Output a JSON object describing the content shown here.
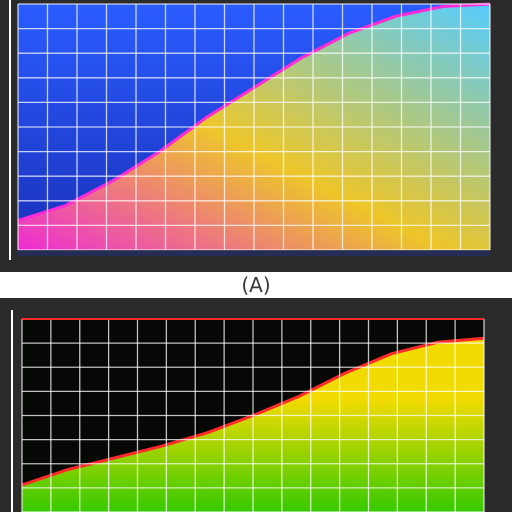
{
  "colors": {
    "frame_dark": "#2b2b2b",
    "panel_a_background": "#1f3fd8",
    "panel_a_band_start": "#ff2bd6",
    "panel_a_band_mid": "#ffd21c",
    "panel_a_band_end": "#58d6ff",
    "panel_b_background": "#050805",
    "panel_b_edge": "#ff2b2b",
    "panel_b_band_mid": "#ffe600",
    "panel_b_band_low": "#39d400",
    "grid": "#ffffff"
  },
  "chart_data": [
    {
      "type": "area",
      "panel_label": "(A)",
      "grid": true,
      "x": [
        0,
        0.1,
        0.2,
        0.3,
        0.4,
        0.5,
        0.6,
        0.7,
        0.8,
        0.9,
        1.0
      ],
      "series": [
        {
          "values": [
            0.12,
            0.18,
            0.28,
            0.4,
            0.54,
            0.66,
            0.78,
            0.88,
            0.95,
            0.99,
            1.0
          ]
        }
      ],
      "xlim": [
        0,
        1
      ],
      "ylim": [
        0,
        1
      ]
    },
    {
      "type": "area",
      "grid": true,
      "x": [
        0,
        0.1,
        0.2,
        0.3,
        0.4,
        0.5,
        0.6,
        0.7,
        0.8,
        0.9,
        1.0
      ],
      "series": [
        {
          "values": [
            0.14,
            0.22,
            0.28,
            0.34,
            0.41,
            0.5,
            0.6,
            0.72,
            0.82,
            0.88,
            0.9
          ]
        }
      ],
      "xlim": [
        0,
        1
      ],
      "ylim": [
        0,
        1
      ]
    }
  ]
}
